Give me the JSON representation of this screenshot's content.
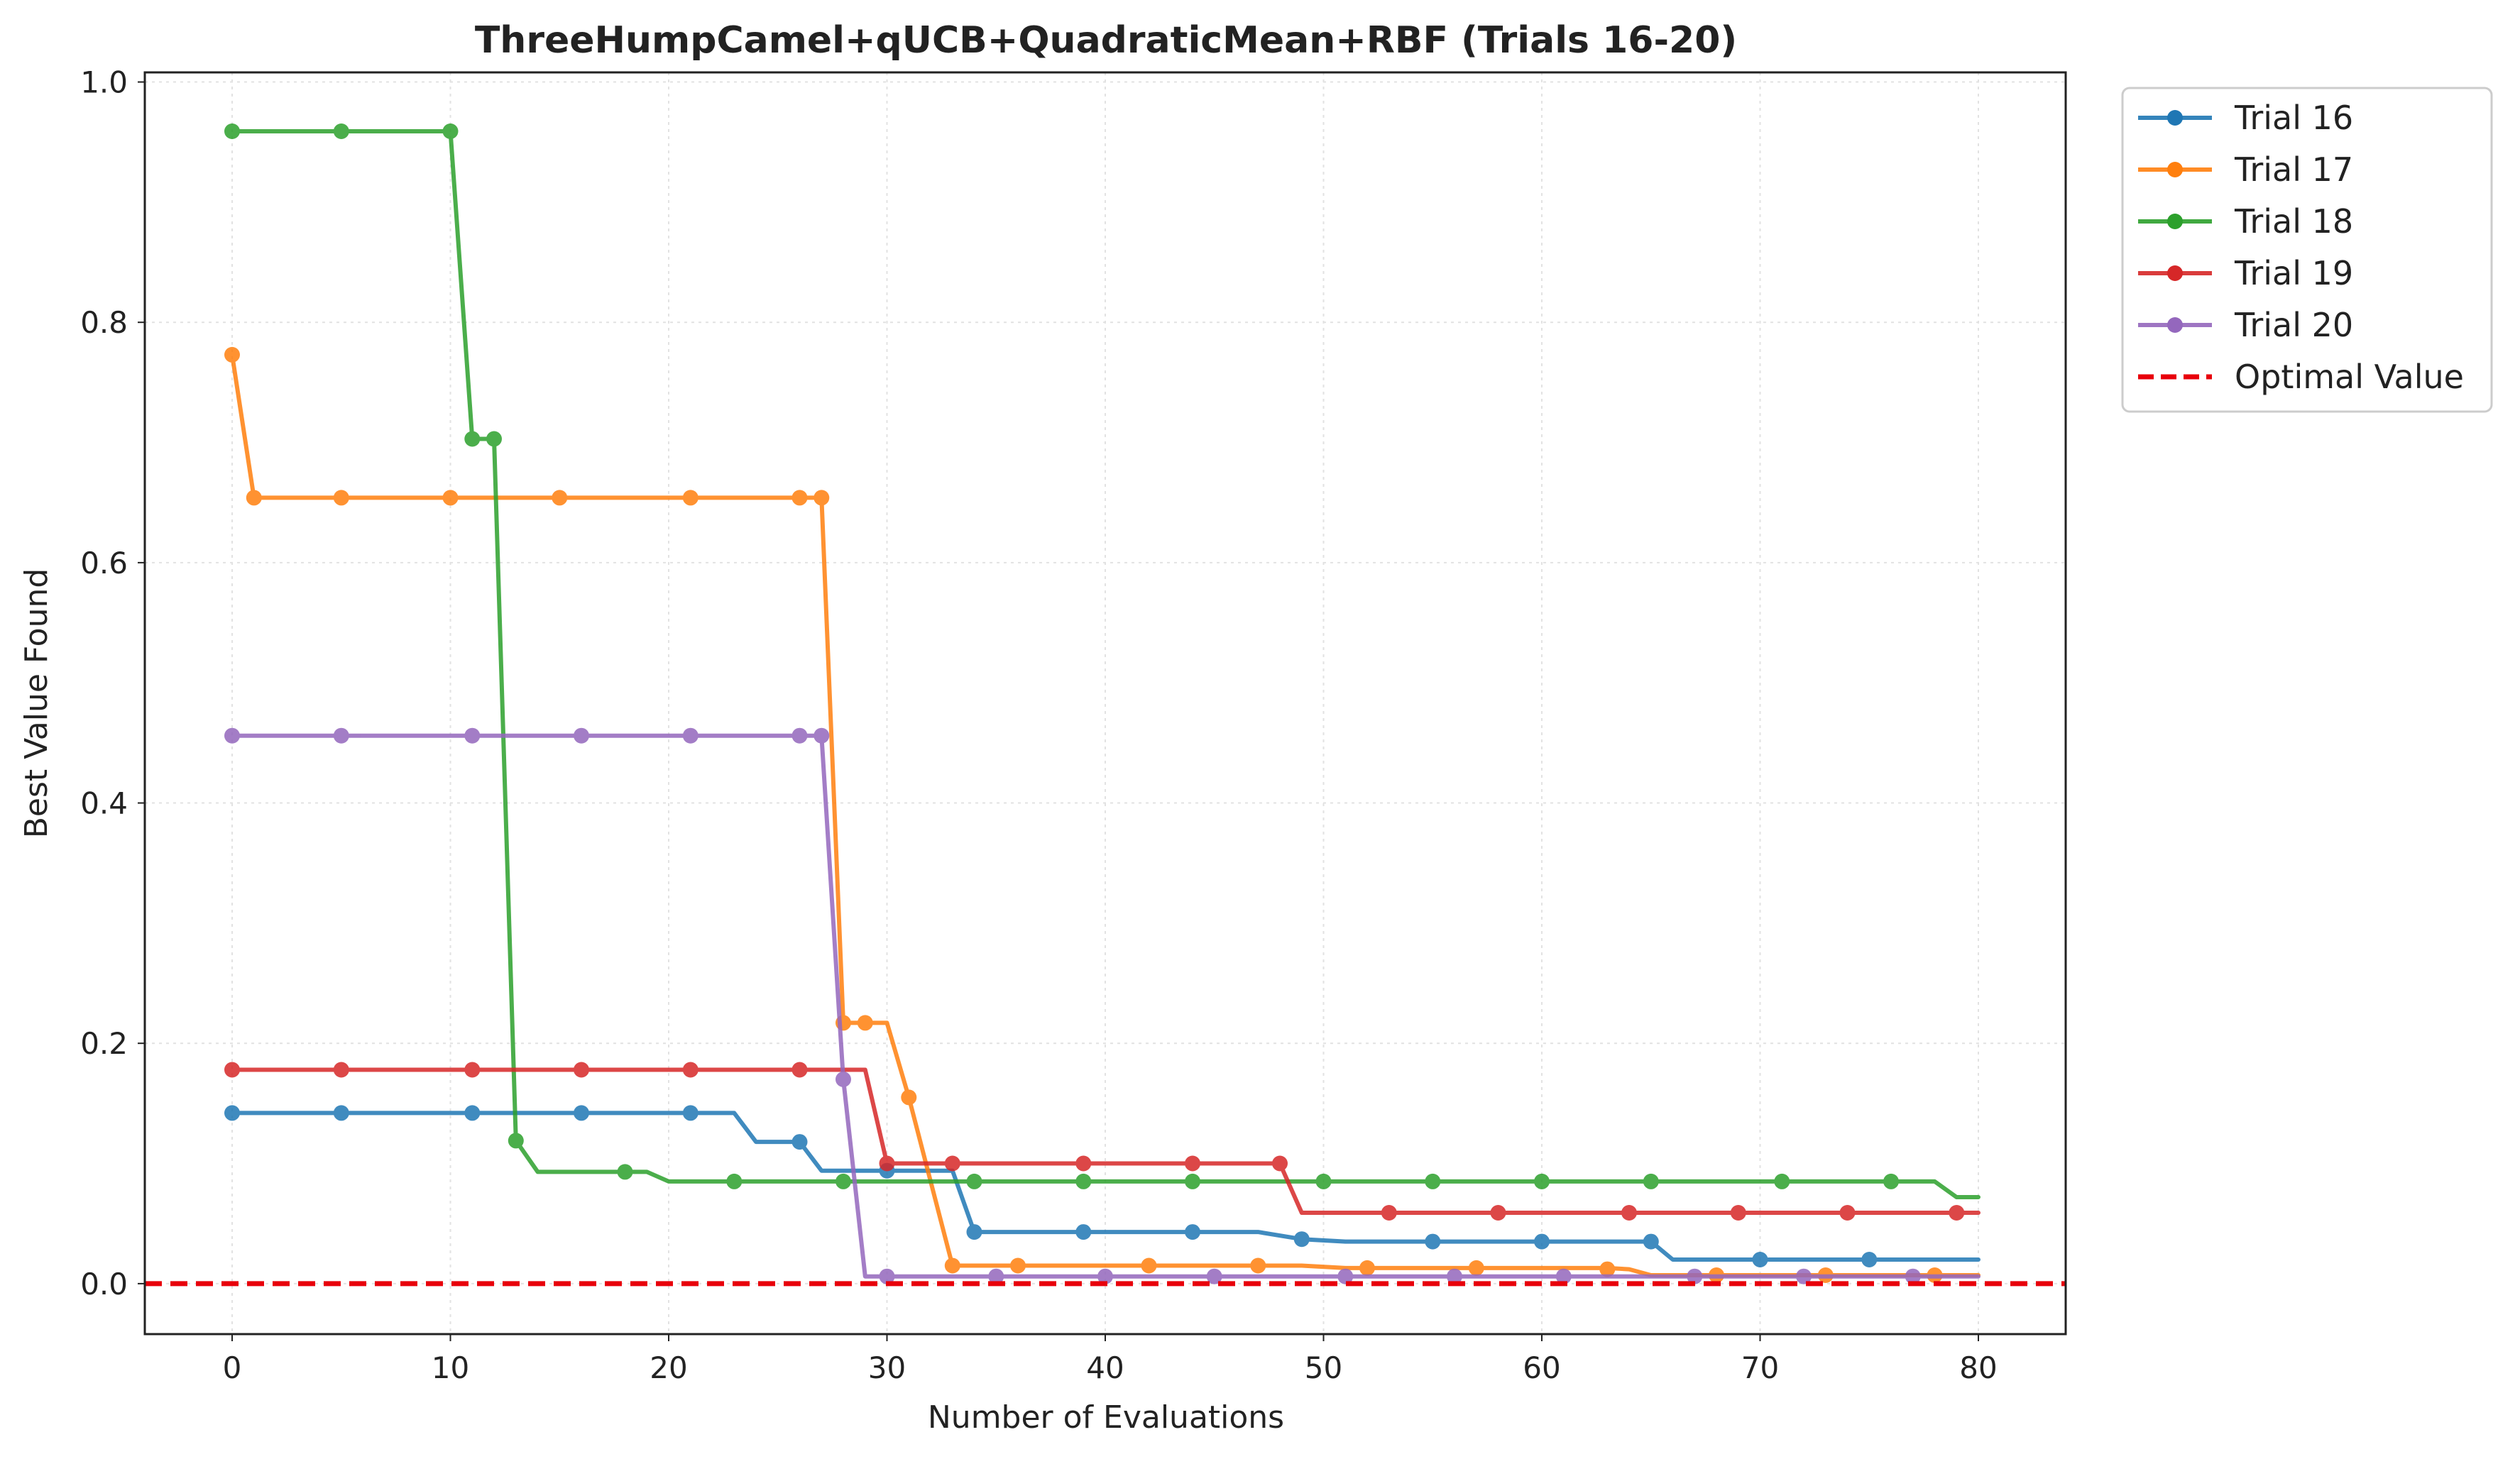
{
  "chart_data": {
    "type": "line",
    "title": "ThreeHumpCamel+qUCB+QuadraticMean+RBF (Trials 16-20)",
    "xlabel": "Number of Evaluations",
    "ylabel": "Best Value Found",
    "xlim": [
      -4,
      84
    ],
    "ylim": [
      -0.042,
      1.008
    ],
    "xticks": [
      0,
      10,
      20,
      30,
      40,
      50,
      60,
      70,
      80
    ],
    "xtick_labels": [
      "0",
      "10",
      "20",
      "30",
      "40",
      "50",
      "60",
      "70",
      "80"
    ],
    "yticks": [
      0.0,
      0.2,
      0.4,
      0.6,
      0.8,
      1.0
    ],
    "ytick_labels": [
      "0.0",
      "0.2",
      "0.4",
      "0.6",
      "0.8",
      "1.0"
    ],
    "grid": true,
    "legend_position": "outside-top-right",
    "series": [
      {
        "name": "Trial 16",
        "color": "#1f77b4",
        "line": [
          [
            0,
            0.142
          ],
          [
            23,
            0.142
          ],
          [
            24,
            0.118
          ],
          [
            26,
            0.118
          ],
          [
            27,
            0.094
          ],
          [
            33,
            0.094
          ],
          [
            34,
            0.043
          ],
          [
            47,
            0.043
          ],
          [
            49,
            0.037
          ],
          [
            51,
            0.035
          ],
          [
            65,
            0.035
          ],
          [
            66,
            0.02
          ],
          [
            80,
            0.02
          ]
        ],
        "markers": [
          [
            0,
            0.142
          ],
          [
            5,
            0.142
          ],
          [
            11,
            0.142
          ],
          [
            16,
            0.142
          ],
          [
            21,
            0.142
          ],
          [
            26,
            0.118
          ],
          [
            30,
            0.094
          ],
          [
            34,
            0.043
          ],
          [
            39,
            0.043
          ],
          [
            44,
            0.043
          ],
          [
            49,
            0.037
          ],
          [
            55,
            0.035
          ],
          [
            60,
            0.035
          ],
          [
            65,
            0.035
          ],
          [
            70,
            0.02
          ],
          [
            75,
            0.02
          ]
        ]
      },
      {
        "name": "Trial 17",
        "color": "#ff7f0e",
        "line": [
          [
            0,
            0.773
          ],
          [
            1,
            0.654
          ],
          [
            27,
            0.654
          ],
          [
            28,
            0.217
          ],
          [
            30,
            0.217
          ],
          [
            31,
            0.155
          ],
          [
            33,
            0.015
          ],
          [
            49,
            0.015
          ],
          [
            51,
            0.013
          ],
          [
            63,
            0.013
          ],
          [
            64,
            0.012
          ],
          [
            65,
            0.007
          ],
          [
            80,
            0.007
          ]
        ],
        "markers": [
          [
            0,
            0.773
          ],
          [
            1,
            0.654
          ],
          [
            5,
            0.654
          ],
          [
            10,
            0.654
          ],
          [
            15,
            0.654
          ],
          [
            21,
            0.654
          ],
          [
            26,
            0.654
          ],
          [
            27,
            0.654
          ],
          [
            28,
            0.217
          ],
          [
            29,
            0.217
          ],
          [
            31,
            0.155
          ],
          [
            33,
            0.015
          ],
          [
            36,
            0.015
          ],
          [
            42,
            0.015
          ],
          [
            47,
            0.015
          ],
          [
            52,
            0.013
          ],
          [
            57,
            0.013
          ],
          [
            63,
            0.012
          ],
          [
            68,
            0.007
          ],
          [
            73,
            0.007
          ],
          [
            78,
            0.007
          ]
        ]
      },
      {
        "name": "Trial 18",
        "color": "#2ca02c",
        "line": [
          [
            0,
            0.959
          ],
          [
            10,
            0.959
          ],
          [
            11,
            0.703
          ],
          [
            12,
            0.703
          ],
          [
            13,
            0.119
          ],
          [
            14,
            0.093
          ],
          [
            19,
            0.093
          ],
          [
            20,
            0.085
          ],
          [
            78,
            0.085
          ],
          [
            79,
            0.072
          ],
          [
            80,
            0.072
          ]
        ],
        "markers": [
          [
            0,
            0.959
          ],
          [
            5,
            0.959
          ],
          [
            10,
            0.959
          ],
          [
            11,
            0.703
          ],
          [
            12,
            0.703
          ],
          [
            13,
            0.119
          ],
          [
            18,
            0.093
          ],
          [
            23,
            0.085
          ],
          [
            28,
            0.085
          ],
          [
            34,
            0.085
          ],
          [
            39,
            0.085
          ],
          [
            44,
            0.085
          ],
          [
            50,
            0.085
          ],
          [
            55,
            0.085
          ],
          [
            60,
            0.085
          ],
          [
            65,
            0.085
          ],
          [
            71,
            0.085
          ],
          [
            76,
            0.085
          ]
        ]
      },
      {
        "name": "Trial 19",
        "color": "#d62728",
        "line": [
          [
            0,
            0.178
          ],
          [
            29,
            0.178
          ],
          [
            30,
            0.1
          ],
          [
            48,
            0.1
          ],
          [
            49,
            0.059
          ],
          [
            80,
            0.059
          ]
        ],
        "markers": [
          [
            0,
            0.178
          ],
          [
            5,
            0.178
          ],
          [
            11,
            0.178
          ],
          [
            16,
            0.178
          ],
          [
            21,
            0.178
          ],
          [
            26,
            0.178
          ],
          [
            30,
            0.1
          ],
          [
            33,
            0.1
          ],
          [
            39,
            0.1
          ],
          [
            44,
            0.1
          ],
          [
            48,
            0.1
          ],
          [
            53,
            0.059
          ],
          [
            58,
            0.059
          ],
          [
            64,
            0.059
          ],
          [
            69,
            0.059
          ],
          [
            74,
            0.059
          ],
          [
            79,
            0.059
          ]
        ]
      },
      {
        "name": "Trial 20",
        "color": "#9467bd",
        "line": [
          [
            0,
            0.456
          ],
          [
            27,
            0.456
          ],
          [
            28,
            0.17
          ],
          [
            29,
            0.006
          ],
          [
            80,
            0.006
          ]
        ],
        "markers": [
          [
            0,
            0.456
          ],
          [
            5,
            0.456
          ],
          [
            11,
            0.456
          ],
          [
            16,
            0.456
          ],
          [
            21,
            0.456
          ],
          [
            26,
            0.456
          ],
          [
            27,
            0.456
          ],
          [
            28,
            0.17
          ],
          [
            30,
            0.006
          ],
          [
            35,
            0.006
          ],
          [
            40,
            0.006
          ],
          [
            45,
            0.006
          ],
          [
            51,
            0.006
          ],
          [
            56,
            0.006
          ],
          [
            61,
            0.006
          ],
          [
            67,
            0.006
          ],
          [
            72,
            0.006
          ],
          [
            77,
            0.006
          ]
        ]
      },
      {
        "name": "Optimal Value",
        "color": "#e8000b",
        "style": "dashed",
        "y": 0.0
      }
    ]
  }
}
